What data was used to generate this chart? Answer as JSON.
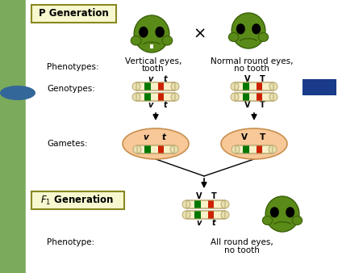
{
  "bg_color": "#c8d8a0",
  "left_sidebar_color": "#7aaa5a",
  "white_main_bg": "#ffffff",
  "title_box1_text": "P Generation",
  "title_box1_color": "#f8f8d0",
  "title_box1_border": "#888820",
  "title_box2_color": "#f8f8d0",
  "title_box2_border": "#888820",
  "phenotype_label": "Phenotypes:",
  "genotype_label": "Genotypes:",
  "gamete_label": "Gametes:",
  "phenotype2_label": "Phenotype:",
  "pheno_left": "Vertical eyes,\ntooth",
  "pheno_right": "Normal round eyes,\nno tooth",
  "pheno_f1": "All round eyes,\nno tooth",
  "cross_symbol": "×",
  "chrom_body_color": "#f8f0c8",
  "chrom_cap_color": "#e8e0b0",
  "green_band": "#007700",
  "red_band": "#cc2200",
  "gamete_oval_color": "#f8c898",
  "gamete_oval_edge": "#c89050",
  "dark_blue_rect": "#1a3a8a",
  "alien_body": "#5a8a18",
  "alien_dark": "#3a6008",
  "sidebar_oval_color": "#336699"
}
